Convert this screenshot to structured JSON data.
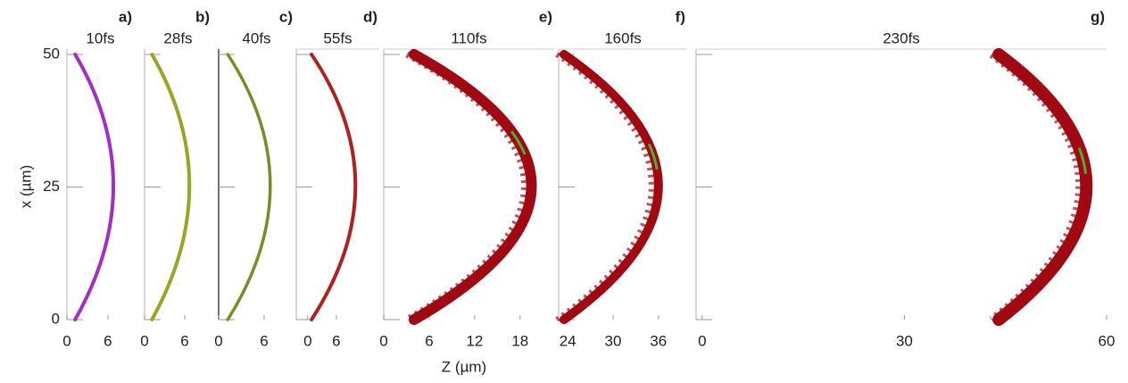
{
  "chart_data": [
    {
      "type": "line",
      "label": "a)",
      "title": "10fs",
      "ylabel": "x (µm)",
      "xlim": [
        0,
        9.8
      ],
      "xticks": [
        0,
        6
      ],
      "ylim": [
        0,
        51
      ],
      "yticks": [
        0,
        25,
        50
      ],
      "ytick_labels": true,
      "apex_x": 6.8,
      "edge_x": 1.2,
      "color": "#a12fc4",
      "width": 4
    },
    {
      "type": "line",
      "label": "b)",
      "title": "28fs",
      "xlim": [
        0,
        10
      ],
      "xticks": [
        0,
        6
      ],
      "ylim": [
        0,
        51
      ],
      "yticks": [
        0,
        25,
        50
      ],
      "ytick_labels": false,
      "apex_x": 6.7,
      "edge_x": 1.1,
      "color": "#9aa526",
      "width": 4
    },
    {
      "type": "line",
      "label": "c)",
      "title": "40fs",
      "xlim": [
        0,
        10
      ],
      "xticks": [
        0,
        6
      ],
      "ylim": [
        0,
        51
      ],
      "yticks": [
        0,
        25,
        50
      ],
      "ytick_labels": false,
      "apex_x": 6.8,
      "edge_x": 1.2,
      "color": "#7c8a2a",
      "width": 3.5
    },
    {
      "type": "line",
      "label": "d)",
      "title": "55fs",
      "xlim": [
        -2.4,
        15
      ],
      "xticks": [
        0,
        6
      ],
      "ylim": [
        0,
        51
      ],
      "yticks": [
        0,
        25,
        50
      ],
      "ytick_labels": false,
      "apex_x": 10,
      "edge_x": 0.8,
      "color": "#b0201c",
      "width": 4
    },
    {
      "type": "line",
      "label": "e)",
      "title": "110fs",
      "xlabel": "Z (µm)",
      "xlim": [
        0,
        22.5
      ],
      "xticks": [
        0,
        6,
        12,
        18
      ],
      "ylim": [
        0,
        51
      ],
      "yticks": [
        0,
        25,
        50
      ],
      "ytick_labels": false,
      "apex_x": 19.5,
      "edge_x": 4,
      "color": "#a00812",
      "width": 12
    },
    {
      "type": "line",
      "label": "f)",
      "title": "160fs",
      "xlim": [
        22.8,
        39.8
      ],
      "xticks": [
        24,
        30,
        36
      ],
      "ylim": [
        0,
        51
      ],
      "yticks": [
        0,
        25,
        50
      ],
      "ytick_labels": false,
      "apex_x": 36,
      "edge_x": 23.5,
      "color": "#a00812",
      "width": 10
    },
    {
      "type": "line",
      "label": "g)",
      "title": "230fs",
      "xlim": [
        -0.9,
        60
      ],
      "xticks": [
        0,
        30,
        60
      ],
      "ylim": [
        0,
        51
      ],
      "yticks": [
        0,
        25,
        50
      ],
      "ytick_labels": false,
      "apex_x": 57,
      "edge_x": 44,
      "color": "#a00812",
      "width": 14
    }
  ]
}
